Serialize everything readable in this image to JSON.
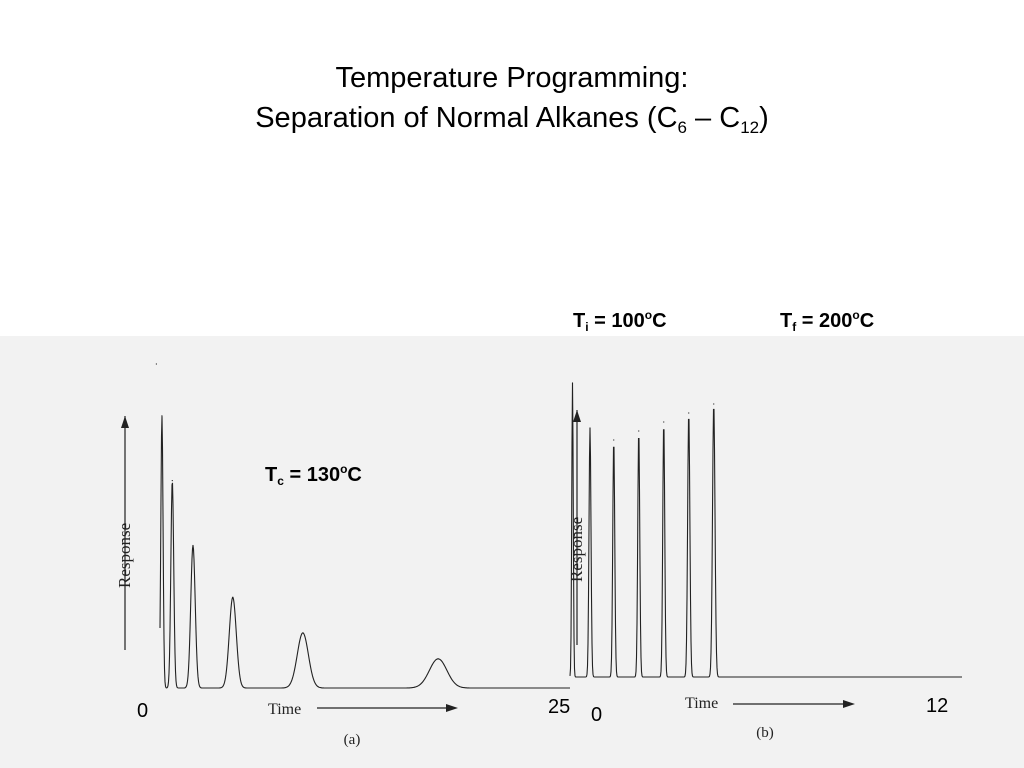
{
  "slide": {
    "title_line1": "Temperature Programming:",
    "title_line2_prefix": "Separation of Normal Alkanes (C",
    "title_sub1": "6",
    "title_mid": " – C",
    "title_sub2": "12",
    "title_suffix": ")"
  },
  "annotations": {
    "tc": {
      "main": "T",
      "sub": "c",
      "value": " = 130",
      "sup": "o",
      "unit": "C"
    },
    "ti": {
      "main": "T",
      "sub": "i",
      "value": " = 100",
      "sup": "o",
      "unit": "C"
    },
    "tf": {
      "main": "T",
      "sub": "f",
      "value": " = 200",
      "sup": "o",
      "unit": "C"
    }
  },
  "chart_data": [
    {
      "type": "line",
      "panel_label": "(a)",
      "xlabel": "Time",
      "ylabel": "Response",
      "x_ticks": [
        "0",
        "25"
      ],
      "xlim": [
        0,
        25
      ],
      "ylim": [
        0,
        1
      ],
      "peaks": [
        {
          "t": 0.4,
          "height": 1.0,
          "width": 0.06
        },
        {
          "t": 0.75,
          "height": 0.84,
          "width": 0.07
        },
        {
          "t": 1.4,
          "height": 0.64,
          "width": 0.09
        },
        {
          "t": 2.7,
          "height": 0.44,
          "width": 0.14
        },
        {
          "t": 5.2,
          "height": 0.28,
          "width": 0.22
        },
        {
          "t": 9.6,
          "height": 0.17,
          "width": 0.35
        },
        {
          "t": 18.1,
          "height": 0.09,
          "width": 0.55
        }
      ]
    },
    {
      "type": "line",
      "panel_label": "(b)",
      "xlabel": "Time",
      "ylabel": "Response",
      "x_ticks": [
        "0",
        "12"
      ],
      "xlim": [
        0,
        12
      ],
      "ylim": [
        0,
        1
      ],
      "peaks": [
        {
          "t": 0.5,
          "height": 0.98,
          "width": 0.03
        },
        {
          "t": 1.2,
          "height": 0.83,
          "width": 0.04
        },
        {
          "t": 2.15,
          "height": 0.79,
          "width": 0.04
        },
        {
          "t": 3.15,
          "height": 0.82,
          "width": 0.04
        },
        {
          "t": 4.15,
          "height": 0.85,
          "width": 0.04
        },
        {
          "t": 5.15,
          "height": 0.88,
          "width": 0.045
        },
        {
          "t": 6.15,
          "height": 0.91,
          "width": 0.05
        }
      ]
    }
  ]
}
